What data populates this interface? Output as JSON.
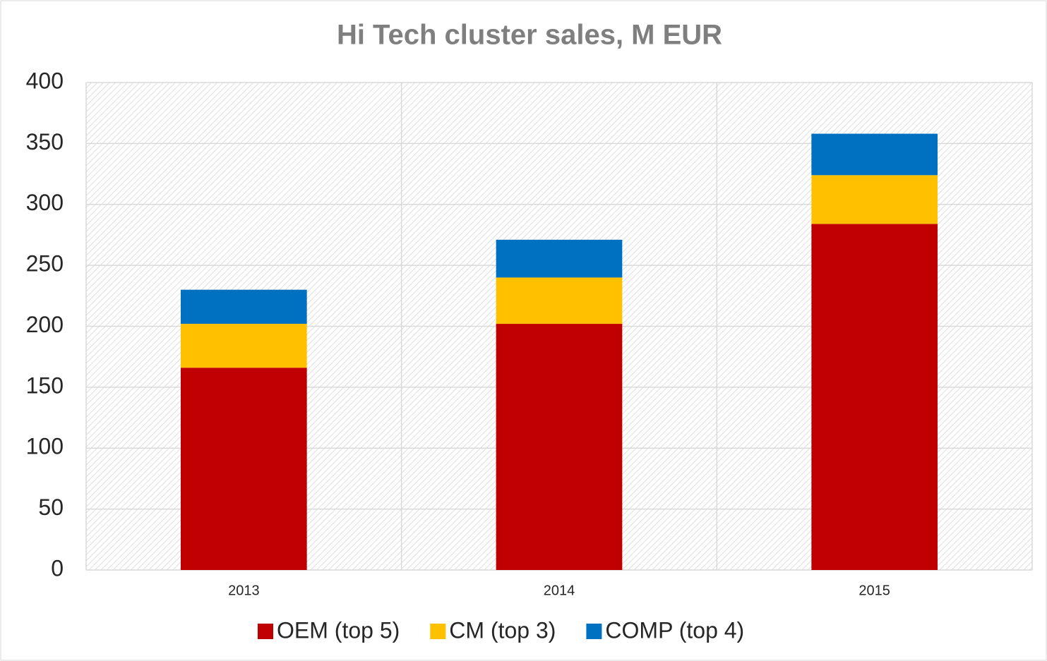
{
  "chart_data": {
    "type": "stacked_bar",
    "title": "Hi Tech cluster sales, M EUR",
    "categories": [
      "2013",
      "2014",
      "2015"
    ],
    "series": [
      {
        "name": "OEM (top 5)",
        "color": "#c00000",
        "values": [
          166,
          202,
          284
        ]
      },
      {
        "name": "CM (top 3)",
        "color": "#ffc000",
        "values": [
          36,
          38,
          40
        ]
      },
      {
        "name": "COMP (top 4)",
        "color": "#0070c0",
        "values": [
          28,
          31,
          34
        ]
      }
    ],
    "ylim": [
      0,
      400
    ],
    "yticks": [
      0,
      50,
      100,
      150,
      200,
      250,
      300,
      350,
      400
    ],
    "grid": true,
    "legend": "bottom"
  }
}
